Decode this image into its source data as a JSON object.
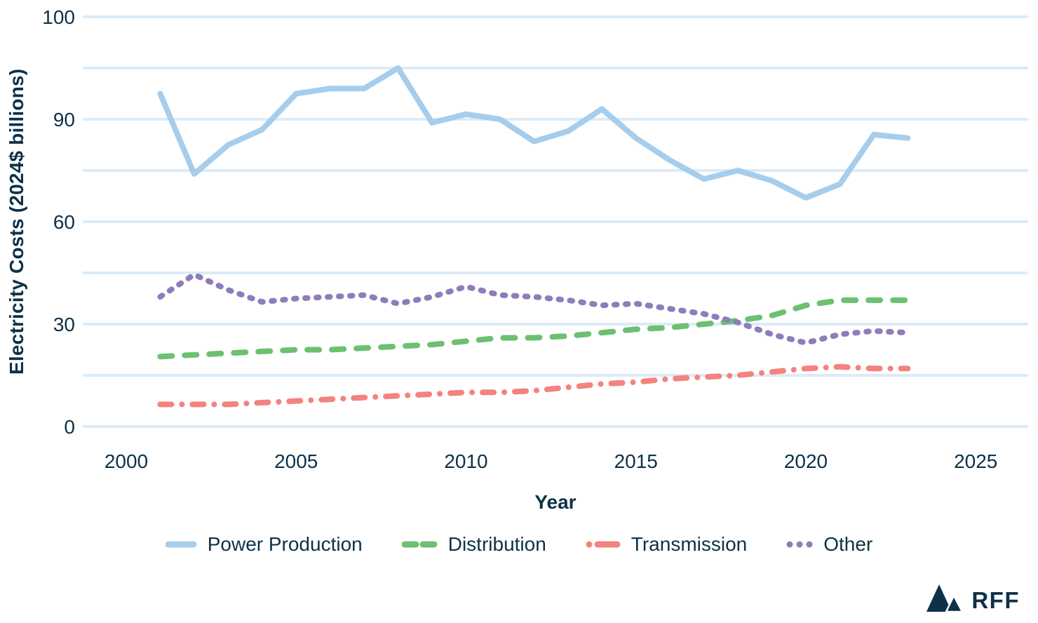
{
  "chart": {
    "y_axis": {
      "title": "Electricity Costs (2024$ billions)",
      "tick_values": [
        0,
        30,
        60,
        90,
        100
      ]
    },
    "x_axis": {
      "title": "Year",
      "tick_values": [
        2000,
        2005,
        2010,
        2015,
        2020,
        2025
      ]
    },
    "legend": [
      {
        "label": "Power Production",
        "style": "solid",
        "color": "#a6cdec"
      },
      {
        "label": "Distribution",
        "style": "dashed",
        "color": "#6cc071"
      },
      {
        "label": "Transmission",
        "style": "dashdot",
        "color": "#f4827d"
      },
      {
        "label": "Other",
        "style": "dotted",
        "color": "#8f7cba"
      }
    ]
  },
  "branding": {
    "logo_text": "RFF"
  },
  "chart_data": {
    "type": "line",
    "title": "",
    "xlabel": "Year",
    "ylabel": "Electricity Costs (2024$ billions)",
    "x": [
      2001,
      2002,
      2003,
      2004,
      2005,
      2006,
      2007,
      2008,
      2009,
      2010,
      2011,
      2012,
      2013,
      2014,
      2015,
      2016,
      2017,
      2018,
      2019,
      2020,
      2021,
      2022,
      2023
    ],
    "series": [
      {
        "name": "Power Production",
        "color": "#a6cdec",
        "style": "solid",
        "values": [
          92.5,
          74,
          82.5,
          87,
          92.5,
          93,
          93,
          95,
          89,
          90.5,
          90,
          83.5,
          86.5,
          91,
          84.5,
          78,
          72.5,
          75,
          72,
          67,
          71,
          85.5,
          84.5
        ]
      },
      {
        "name": "Distribution",
        "color": "#6cc071",
        "style": "dashed",
        "values": [
          20.5,
          21,
          21.5,
          22,
          22.5,
          22.5,
          23,
          23.5,
          24,
          25,
          26,
          26,
          26.5,
          27.5,
          28.5,
          29,
          30,
          31,
          32.5,
          35.5,
          37,
          37,
          37
        ]
      },
      {
        "name": "Transmission",
        "color": "#f4827d",
        "style": "dashdot",
        "values": [
          6.5,
          6.5,
          6.5,
          7,
          7.5,
          8,
          8.5,
          9,
          9.5,
          10,
          10,
          10.5,
          11.5,
          12.5,
          13,
          14,
          14.5,
          15,
          16,
          17,
          17.5,
          17,
          17
        ]
      },
      {
        "name": "Other",
        "color": "#8f7cba",
        "style": "dotted",
        "values": [
          38,
          44.5,
          40,
          36.5,
          37.5,
          38,
          38.5,
          36,
          38,
          41,
          38.5,
          38,
          37,
          35.5,
          36,
          34.5,
          33,
          30.5,
          27,
          24.5,
          27,
          28,
          27.5
        ]
      }
    ],
    "y_ticks": [
      0,
      30,
      60,
      90,
      100
    ],
    "y_minor_gridlines": [
      15,
      45,
      75,
      95
    ],
    "x_ticks": [
      2000,
      2005,
      2010,
      2015,
      2020,
      2025
    ],
    "y_scale": "ticks-equally-spaced-nonlinear",
    "xlim": [
      2000,
      2025
    ],
    "ylim": [
      0,
      100
    ],
    "grid": true,
    "legend_position": "bottom"
  }
}
